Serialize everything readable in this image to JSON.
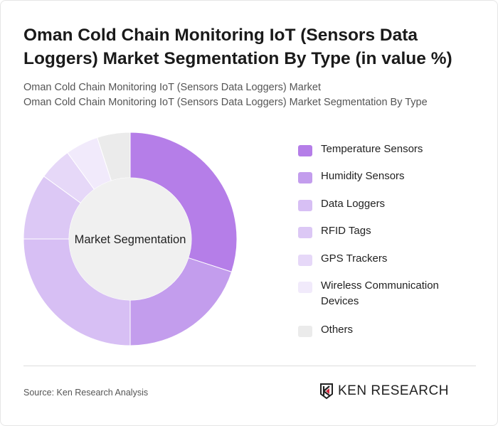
{
  "title": "Oman Cold Chain Monitoring IoT (Sensors Data Loggers) Market Segmentation By Type (in value %)",
  "subtitle_1": "Oman Cold Chain Monitoring IoT (Sensors Data Loggers) Market",
  "subtitle_2": "Oman Cold Chain Monitoring IoT (Sensors Data Loggers) Market Segmentation By Type",
  "source": "Source: Ken Research Analysis",
  "logo_text": "KEN RESEARCH",
  "chart_data": {
    "type": "pie",
    "variant": "donut",
    "center_label": "Market Segmentation",
    "legend_position": "right",
    "categories": [
      "Temperature Sensors",
      "Humidity Sensors",
      "Data Loggers",
      "RFID Tags",
      "GPS Trackers",
      "Wireless Communication Devices",
      "Others"
    ],
    "values": [
      30,
      20,
      25,
      10,
      5,
      5,
      5
    ],
    "colors": [
      "#b57ee8",
      "#c39ded",
      "#d7bff4",
      "#dcc8f5",
      "#e6d8f8",
      "#f1eafb",
      "#ebebeb"
    ],
    "unit": "%"
  }
}
